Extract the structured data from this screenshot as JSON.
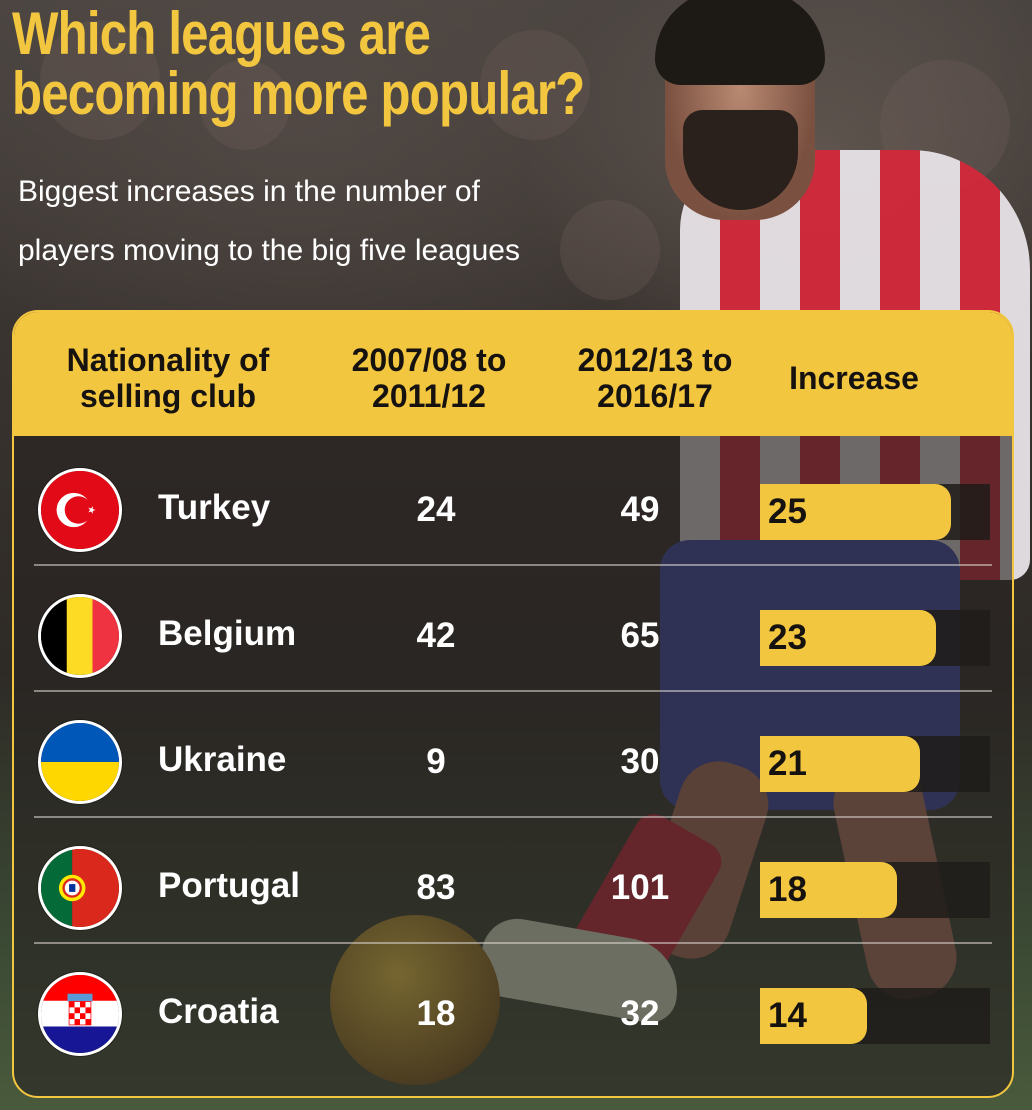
{
  "title_lines": [
    "Which leagues are",
    "becoming more popular?"
  ],
  "subtitle_lines": [
    "Biggest increases in the number of",
    "players moving to the big five leagues"
  ],
  "colors": {
    "accent": "#f3c640",
    "header_text": "#15120f"
  },
  "table": {
    "headers": {
      "nationality": [
        "Nationality of",
        "selling club"
      ],
      "period1": [
        "2007/08 to",
        "2011/12"
      ],
      "period2": [
        "2012/13 to",
        "2016/17"
      ],
      "increase": "Increase"
    }
  },
  "chart_data": {
    "type": "table",
    "title": "Which leagues are becoming more popular?",
    "subtitle": "Biggest increases in the number of players moving to the big five leagues",
    "columns": [
      "Nationality of selling club",
      "2007/08 to 2011/12",
      "2012/13 to 2016/17",
      "Increase"
    ],
    "increase_max": 25,
    "rows": [
      {
        "country": "Turkey",
        "flag": "turkey-flag-icon",
        "period1": "24",
        "period2": "49",
        "increase": "25",
        "increase_value": 25
      },
      {
        "country": "Belgium",
        "flag": "belgium-flag-icon",
        "period1": "42",
        "period2": "65",
        "increase": "23",
        "increase_value": 23
      },
      {
        "country": "Ukraine",
        "flag": "ukraine-flag-icon",
        "period1": "9",
        "period2": "30",
        "increase": "21",
        "increase_value": 21
      },
      {
        "country": "Portugal",
        "flag": "portugal-flag-icon",
        "period1": "83",
        "period2": "101",
        "increase": "18",
        "increase_value": 18
      },
      {
        "country": "Croatia",
        "flag": "croatia-flag-icon",
        "period1": "18",
        "period2": "32",
        "increase": "14",
        "increase_value": 14
      }
    ]
  }
}
